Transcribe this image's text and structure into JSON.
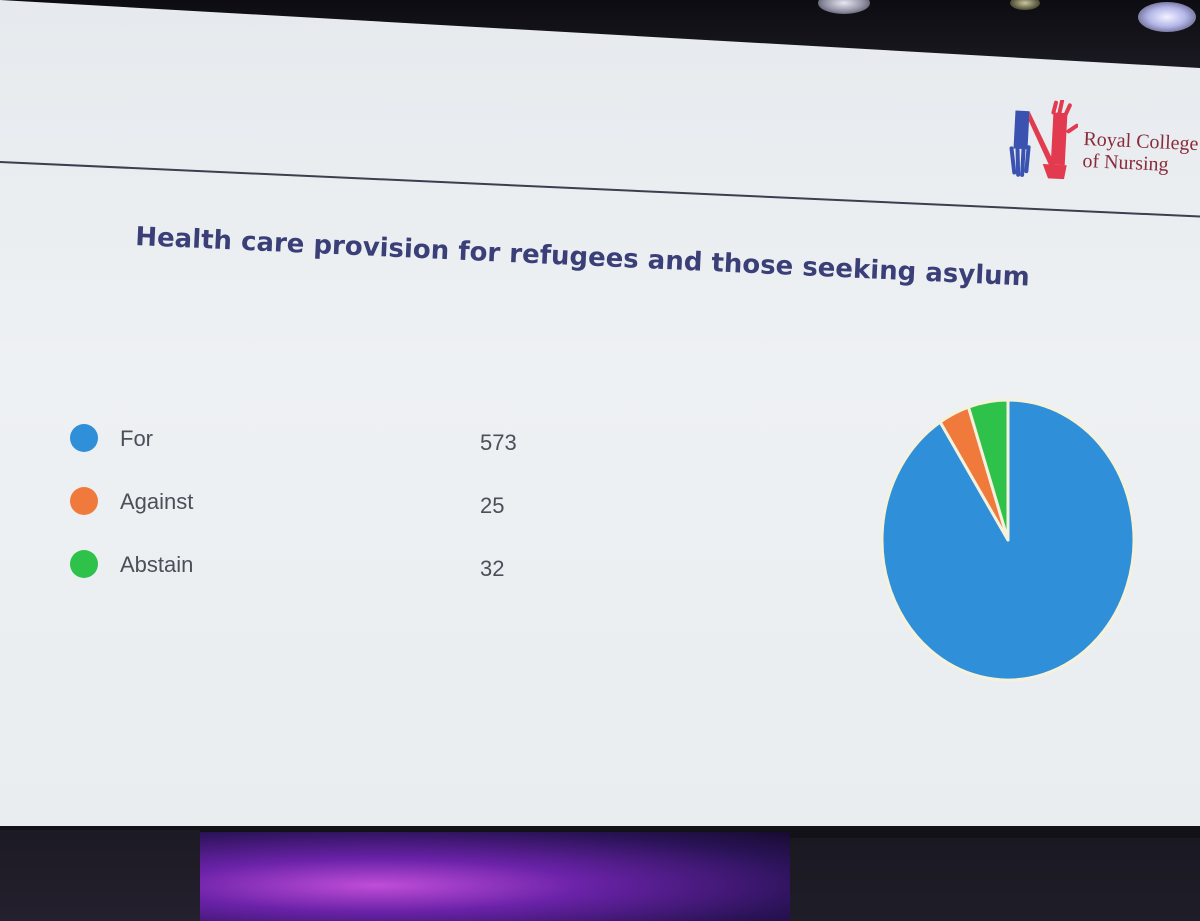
{
  "slide": {
    "logo": {
      "line1": "Royal College",
      "line2": "of Nursing"
    }
  },
  "chart_data": {
    "type": "pie",
    "title": "Health care provision for refugees and those seeking asylum",
    "categories": [
      "For",
      "Against",
      "Abstain"
    ],
    "values": [
      573,
      25,
      32
    ],
    "colors": [
      "#2f8fd8",
      "#f07a3c",
      "#2ec24a"
    ],
    "legend_position": "left",
    "slice_border_color": "#f4f1dc"
  }
}
